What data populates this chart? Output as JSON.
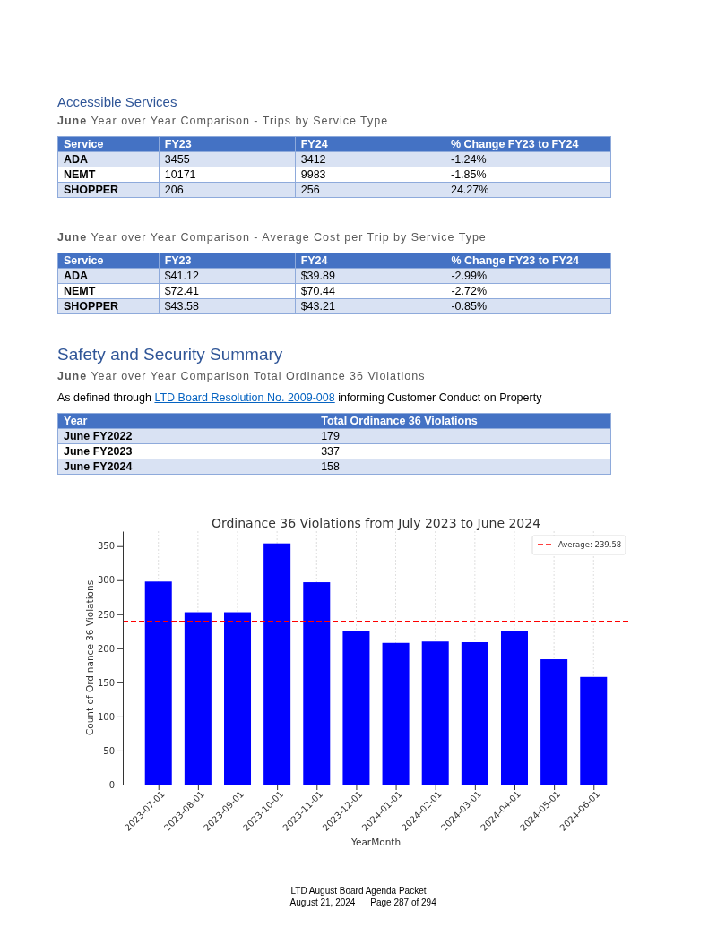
{
  "chart_data": [
    {
      "type": "other",
      "title": "Accessible Services",
      "subtitle": "June Year over Year Comparison - Trips by Service Type",
      "categories": [
        "Service",
        "FY23",
        "FY24",
        "% Change FY23 to FY24"
      ],
      "y_categories": [
        "ADA",
        "NEMT",
        "SHOPPER"
      ],
      "cell_labels": [
        [
          "3455",
          "3412",
          "-1.24%"
        ],
        [
          "10171",
          "9983",
          "-1.85%"
        ],
        [
          "206",
          "256",
          "24.27%"
        ]
      ]
    },
    {
      "type": "other",
      "subtitle": "June Year over Year Comparison - Average Cost per Trip by Service Type",
      "categories": [
        "Service",
        "FY23",
        "FY24",
        "% Change FY23 to FY24"
      ],
      "y_categories": [
        "ADA",
        "NEMT",
        "SHOPPER"
      ],
      "cell_labels": [
        [
          "$41.12",
          "$39.89",
          "-2.99%"
        ],
        [
          "$72.41",
          "$70.44",
          "-2.72%"
        ],
        [
          "$43.58",
          "$43.21",
          "-0.85%"
        ]
      ]
    },
    {
      "type": "other",
      "title": "Safety and Security Summary",
      "subtitle": "June Year over Year Comparison Total Ordinance 36 Violations",
      "annotations": [
        "As defined through",
        "LTD Board Resolution No. 2009-008",
        "informing Customer Conduct on Property"
      ],
      "categories": [
        "Year",
        "Total Ordinance 36 Violations"
      ],
      "y_categories": [
        "June FY2022",
        "June FY2023",
        "June FY2024"
      ],
      "cell_labels": [
        [
          "179"
        ],
        [
          "337"
        ],
        [
          "158"
        ]
      ]
    },
    {
      "type": "bar",
      "title": "Ordinance 36 Violations from July 2023 to June 2024",
      "xlabel": "YearMonth",
      "ylabel": "Count of Ordinance 36 Violations",
      "categories": [
        "2023-07-01",
        "2023-08-01",
        "2023-09-01",
        "2023-10-01",
        "2023-11-01",
        "2023-12-01",
        "2024-01-01",
        "2024-02-01",
        "2024-03-01",
        "2024-04-01",
        "2024-05-01",
        "2024-06-01"
      ],
      "values": [
        298,
        253,
        253,
        354,
        297,
        225,
        208,
        210,
        209,
        225,
        184,
        158
      ],
      "color": "#0000ff",
      "ylim": [
        0,
        372
      ],
      "yticks": [
        0,
        50,
        100,
        150,
        200,
        250,
        300,
        350
      ],
      "grid": "x",
      "legend": "top right",
      "ref_lines": [
        {
          "axis": "y",
          "value": 239.58,
          "label": "Average: 239.58",
          "color": "#ff0000",
          "line_style": "dashed"
        }
      ],
      "annotations": [
        "LTD August Board Agenda Packet",
        "August 21, 2024",
        "Page 287 of 294"
      ]
    }
  ]
}
